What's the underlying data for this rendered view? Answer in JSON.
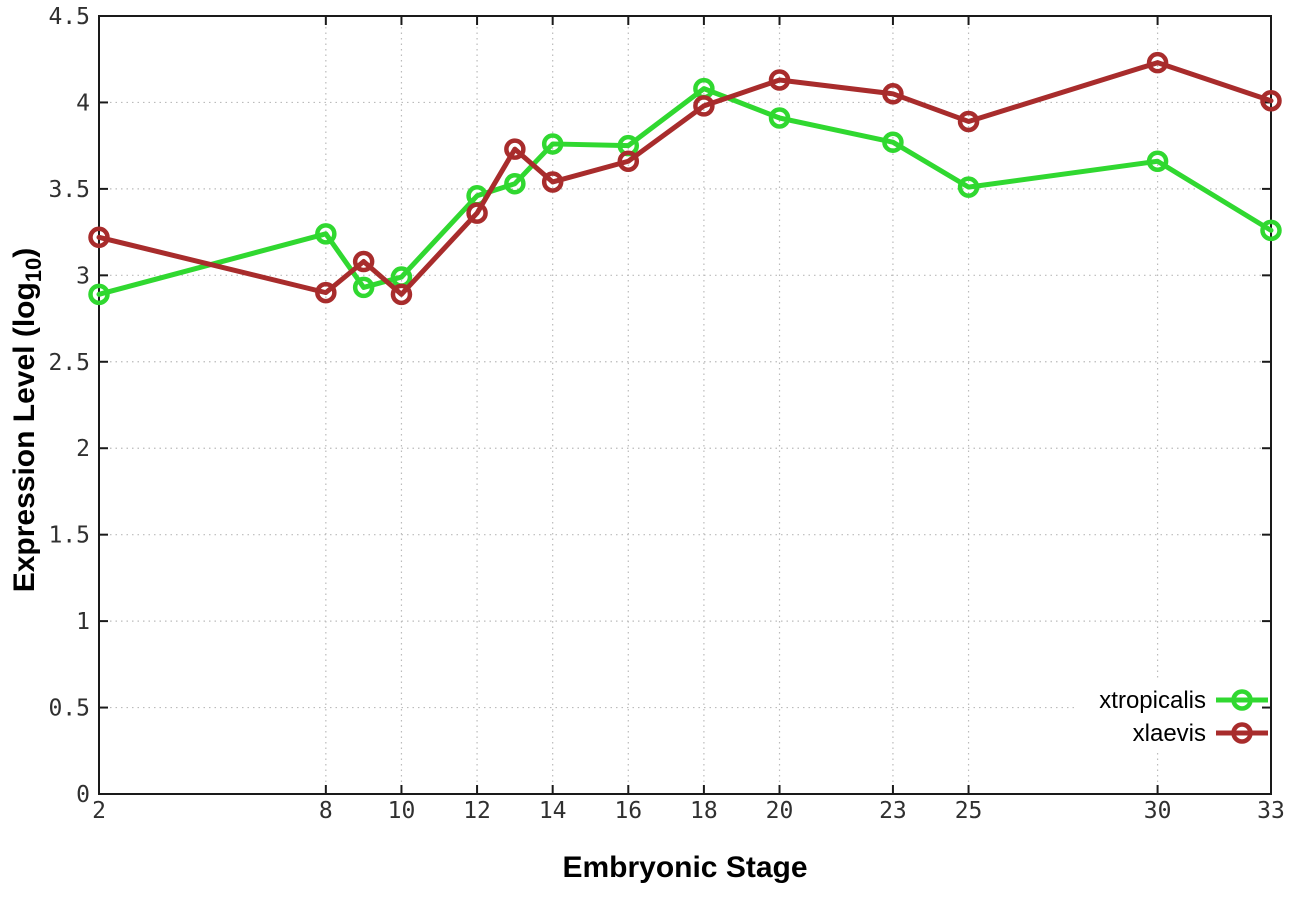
{
  "chart_data": {
    "type": "line",
    "title": "",
    "xlabel": "Embryonic Stage",
    "ylabel": "Expression Level (log10)",
    "ylabel_parts": {
      "prefix": "Expression Level (log",
      "sub": "10",
      "suffix": ")"
    },
    "x": [
      2,
      8,
      9,
      10,
      12,
      13,
      14,
      16,
      18,
      20,
      23,
      25,
      30,
      33
    ],
    "series": [
      {
        "name": "xtropicalis",
        "color": "#30d830",
        "marker": "open-circle",
        "values": [
          2.89,
          3.24,
          2.93,
          2.99,
          3.46,
          3.53,
          3.76,
          3.75,
          4.08,
          3.91,
          3.77,
          3.51,
          3.66,
          3.26
        ]
      },
      {
        "name": "xlaevis",
        "color": "#a82c2c",
        "marker": "open-circle",
        "values": [
          3.22,
          2.9,
          3.08,
          2.89,
          3.36,
          3.73,
          3.54,
          3.66,
          3.98,
          4.13,
          4.05,
          3.89,
          4.23,
          4.01
        ]
      }
    ],
    "xlim": [
      2,
      33
    ],
    "ylim": [
      0,
      4.5
    ],
    "xticks": [
      2,
      8,
      10,
      12,
      14,
      16,
      18,
      20,
      23,
      25,
      30,
      33
    ],
    "yticks": [
      0,
      0.5,
      1,
      1.5,
      2,
      2.5,
      3,
      3.5,
      4,
      4.5
    ],
    "grid": true,
    "legend_position": "inside-bottom-right"
  },
  "colors": {
    "background": "#ffffff",
    "plot_border": "#1a1a1a",
    "grid": "#bbbbbb",
    "tick_label": "#303030",
    "axis_title": "#000000",
    "legend_text": "#000000"
  }
}
